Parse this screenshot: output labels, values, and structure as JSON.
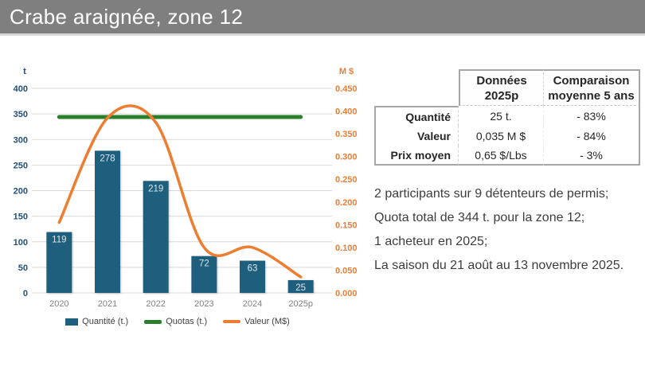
{
  "title": "Crabe araignée, zone 12",
  "colors": {
    "title_bar_bg": "#7f7f7f",
    "bar": "#1f5f7e",
    "bar_label": "#dbe5f0",
    "quota_line": "#2b7f2b",
    "value_line": "#ed7d31",
    "left_axis_text": "#1f4e79",
    "right_axis_text": "#ed7d31",
    "x_label_text": "#808080",
    "gridline": "#d9d9d9",
    "table_border": "#a6a6a6",
    "notes_text": "#3d3d3d"
  },
  "chart_data": {
    "type": "combo",
    "categories": [
      "2020",
      "2021",
      "2022",
      "2023",
      "2024",
      "2025p"
    ],
    "series": [
      {
        "name": "Quantité (t.)",
        "type": "bar",
        "axis": "left",
        "values": [
          119,
          278,
          219,
          72,
          63,
          25
        ]
      },
      {
        "name": "Quotas (t.)",
        "type": "line",
        "axis": "left",
        "values": [
          344,
          344,
          344,
          344,
          344,
          344
        ]
      },
      {
        "name": "Valeur (M$)",
        "type": "smooth-line",
        "axis": "right",
        "values": [
          0.155,
          0.385,
          0.375,
          0.1,
          0.1,
          0.035
        ]
      }
    ],
    "left_axis": {
      "label": "t",
      "min": 0,
      "max": 400,
      "step": 50
    },
    "right_axis": {
      "label": "M $",
      "min": 0,
      "max": 0.45,
      "step": 0.05,
      "decimals": 3
    },
    "grid": true,
    "legend_position": "bottom"
  },
  "table": {
    "headers": [
      {
        "line1": "Données",
        "line2": "2025p"
      },
      {
        "line1": "Comparaison",
        "line2": "moyenne 5 ans"
      }
    ],
    "rows": [
      {
        "label": "Quantité",
        "value": "25 t.",
        "comparison": "- 83%"
      },
      {
        "label": "Valeur",
        "value": "0,035 M $",
        "comparison": "- 84%"
      },
      {
        "label": "Prix moyen",
        "value": "0,65 $/Lbs",
        "comparison": "- 3%"
      }
    ]
  },
  "notes": [
    "2 participants sur 9 détenteurs de permis;",
    "Quota total de 344 t. pour la zone 12;",
    "1 acheteur en 2025;",
    "La saison du 21 août au 13 novembre 2025."
  ]
}
